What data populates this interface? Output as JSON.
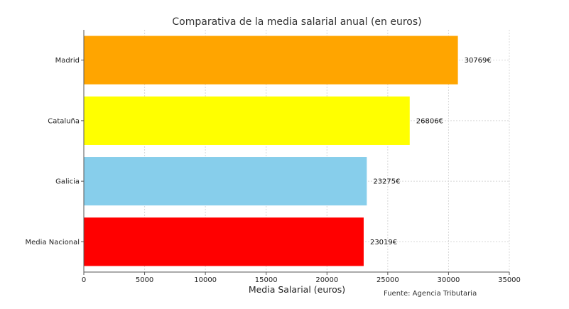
{
  "chart_data": {
    "type": "bar",
    "orientation": "horizontal",
    "title": "Comparativa de la media salarial anual (en euros)",
    "xlabel": "Media Salarial (euros)",
    "ylabel": "",
    "categories": [
      "Madrid",
      "Cataluña",
      "Galicia",
      "Media Nacional"
    ],
    "values": [
      30769,
      26806,
      23275,
      23019
    ],
    "data_labels": [
      "30769€",
      "26806€",
      "23275€",
      "23019€"
    ],
    "colors": [
      "#FFA500",
      "#FFFF00",
      "#87CEEB",
      "#FF0000"
    ],
    "xlim": [
      0,
      35000
    ],
    "xticks": [
      "0",
      "5000",
      "10000",
      "15000",
      "20000",
      "25000",
      "30000",
      "35000"
    ],
    "grid": true,
    "annotation": "Fuente: Agencia Tributaria"
  }
}
